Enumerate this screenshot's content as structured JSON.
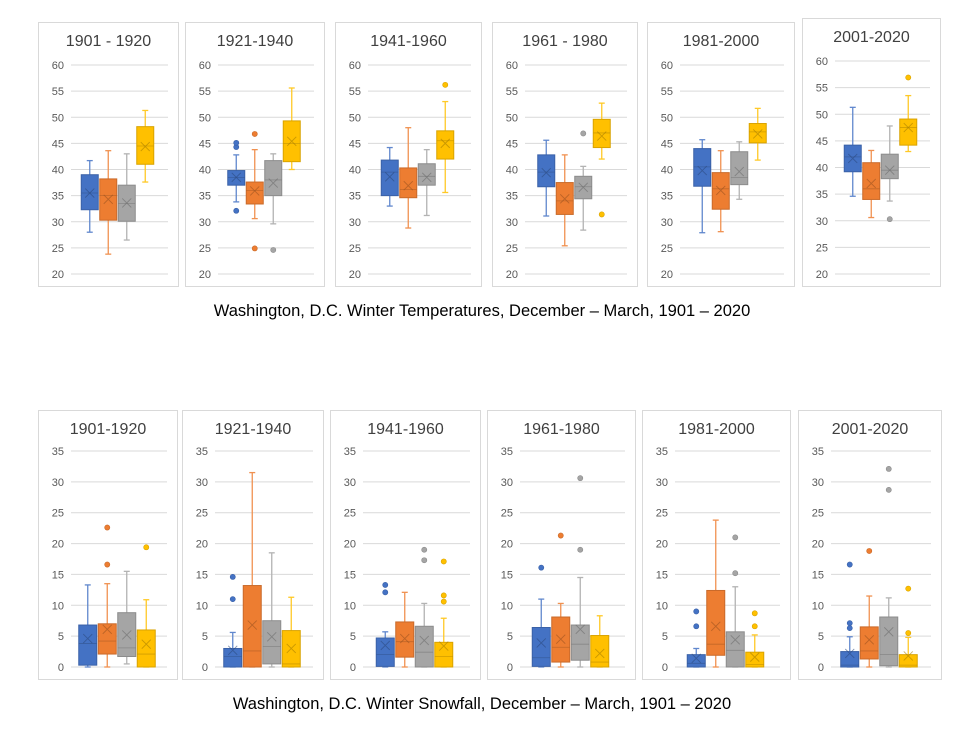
{
  "colors": {
    "blue": "#4472c4",
    "orange": "#ed7d31",
    "gray": "#a5a5a5",
    "yellow": "#ffc000",
    "grid": "#d9d9d9",
    "frame": "#d9d9d9"
  },
  "captions": {
    "temperature": "Washington, D.C. Winter Temperatures, December – March, 1901 – 2020",
    "snowfall": "Washington, D.C. Winter Snowfall, December – March, 1901 – 2020"
  },
  "chart_data": [
    {
      "type": "box",
      "group": "temperature",
      "title": "1901 - 1920",
      "ylim": [
        20,
        60
      ],
      "yticks": [
        20,
        25,
        30,
        35,
        40,
        45,
        50,
        55,
        60
      ],
      "grid": true,
      "series_colors": [
        "blue",
        "orange",
        "gray",
        "yellow"
      ],
      "boxes": [
        {
          "min": 28,
          "q1": 32.3,
          "median": 35.5,
          "q3": 39,
          "max": 41.7,
          "mean": 35.5,
          "outliers": []
        },
        {
          "min": 23.8,
          "q1": 30.3,
          "median": 35,
          "q3": 38.2,
          "max": 43.6,
          "mean": 34.3,
          "outliers": []
        },
        {
          "min": 26.5,
          "q1": 30.1,
          "median": 33.5,
          "q3": 37,
          "max": 43,
          "mean": 33.6,
          "outliers": []
        },
        {
          "min": 37.6,
          "q1": 41,
          "median": 44.5,
          "q3": 48.2,
          "max": 51.3,
          "mean": 44.4,
          "outliers": []
        }
      ]
    },
    {
      "type": "box",
      "group": "temperature",
      "title": "1921-1940",
      "ylim": [
        20,
        60
      ],
      "yticks": [
        20,
        25,
        30,
        35,
        40,
        45,
        50,
        55,
        60
      ],
      "grid": true,
      "series_colors": [
        "blue",
        "orange",
        "gray",
        "yellow"
      ],
      "boxes": [
        {
          "min": 33.8,
          "q1": 37,
          "median": 38.5,
          "q3": 39.8,
          "max": 42.8,
          "mean": 38.5,
          "outliers": [
            32.1,
            44.3,
            45.1
          ]
        },
        {
          "min": 30.6,
          "q1": 33.4,
          "median": 36,
          "q3": 37.6,
          "max": 43.8,
          "mean": 35.9,
          "outliers": [
            24.9,
            46.8
          ]
        },
        {
          "min": 29.6,
          "q1": 35,
          "median": 38,
          "q3": 41.7,
          "max": 43,
          "mean": 37.4,
          "outliers": [
            24.6
          ]
        },
        {
          "min": 40,
          "q1": 41.5,
          "median": 45,
          "q3": 49.3,
          "max": 55.6,
          "mean": 45.4,
          "outliers": []
        }
      ]
    },
    {
      "type": "box",
      "group": "temperature",
      "title": "1941-1960",
      "ylim": [
        20,
        60
      ],
      "yticks": [
        20,
        25,
        30,
        35,
        40,
        45,
        50,
        55,
        60
      ],
      "grid": true,
      "series_colors": [
        "blue",
        "orange",
        "gray",
        "yellow"
      ],
      "boxes": [
        {
          "min": 33,
          "q1": 35,
          "median": 39.5,
          "q3": 41.8,
          "max": 44.2,
          "mean": 38.6,
          "outliers": []
        },
        {
          "min": 28.8,
          "q1": 34.6,
          "median": 36.2,
          "q3": 40.3,
          "max": 48,
          "mean": 36.9,
          "outliers": []
        },
        {
          "min": 31.2,
          "q1": 37,
          "median": 38.7,
          "q3": 41.1,
          "max": 43.8,
          "mean": 38.5,
          "outliers": []
        },
        {
          "min": 35.6,
          "q1": 42,
          "median": 45.5,
          "q3": 47.4,
          "max": 53,
          "mean": 45,
          "outliers": [
            56.2
          ]
        }
      ]
    },
    {
      "type": "box",
      "group": "temperature",
      "title": "1961 - 1980",
      "ylim": [
        20,
        60
      ],
      "yticks": [
        20,
        25,
        30,
        35,
        40,
        45,
        50,
        55,
        60
      ],
      "grid": true,
      "series_colors": [
        "blue",
        "orange",
        "gray",
        "yellow"
      ],
      "boxes": [
        {
          "min": 31.1,
          "q1": 36.7,
          "median": 39.5,
          "q3": 42.8,
          "max": 45.6,
          "mean": 39.4,
          "outliers": []
        },
        {
          "min": 25.4,
          "q1": 31.4,
          "median": 34,
          "q3": 37.5,
          "max": 42.8,
          "mean": 34.4,
          "outliers": []
        },
        {
          "min": 28.4,
          "q1": 34.4,
          "median": 36.7,
          "q3": 38.7,
          "max": 40.6,
          "mean": 36.6,
          "outliers": [
            46.9
          ]
        },
        {
          "min": 42,
          "q1": 44.2,
          "median": 47,
          "q3": 49.6,
          "max": 52.7,
          "mean": 46.4,
          "outliers": [
            31.4
          ]
        }
      ]
    },
    {
      "type": "box",
      "group": "temperature",
      "title": "1981-2000",
      "ylim": [
        20,
        60
      ],
      "yticks": [
        20,
        25,
        30,
        35,
        40,
        45,
        50,
        55,
        60
      ],
      "grid": true,
      "series_colors": [
        "blue",
        "orange",
        "gray",
        "yellow"
      ],
      "boxes": [
        {
          "min": 27.9,
          "q1": 36.8,
          "median": 40.5,
          "q3": 44,
          "max": 45.7,
          "mean": 39.8,
          "outliers": []
        },
        {
          "min": 28.1,
          "q1": 32.4,
          "median": 36.3,
          "q3": 39.4,
          "max": 43.6,
          "mean": 36,
          "outliers": []
        },
        {
          "min": 34.3,
          "q1": 37.1,
          "median": 38.5,
          "q3": 43.4,
          "max": 45.3,
          "mean": 39.6,
          "outliers": []
        },
        {
          "min": 41.8,
          "q1": 45.1,
          "median": 47.2,
          "q3": 48.8,
          "max": 51.7,
          "mean": 46.8,
          "outliers": []
        }
      ]
    },
    {
      "type": "box",
      "group": "temperature",
      "title": "2001-2020",
      "ylim": [
        20,
        60
      ],
      "yticks": [
        20,
        25,
        30,
        35,
        40,
        45,
        50,
        55,
        60
      ],
      "grid": true,
      "series_colors": [
        "blue",
        "orange",
        "gray",
        "yellow"
      ],
      "boxes": [
        {
          "min": 34.6,
          "q1": 39.2,
          "median": 42,
          "q3": 44.2,
          "max": 51.3,
          "mean": 41.7,
          "outliers": []
        },
        {
          "min": 30.6,
          "q1": 34,
          "median": 36,
          "q3": 40.9,
          "max": 43.2,
          "mean": 37,
          "outliers": []
        },
        {
          "min": 33.7,
          "q1": 37.9,
          "median": 39.5,
          "q3": 42.5,
          "max": 47.8,
          "mean": 39.5,
          "outliers": [
            30.3
          ]
        },
        {
          "min": 43,
          "q1": 44.2,
          "median": 47.5,
          "q3": 49.1,
          "max": 53.5,
          "mean": 47.5,
          "outliers": [
            56.9
          ]
        }
      ]
    },
    {
      "type": "box",
      "group": "snowfall",
      "title": "1901-1920",
      "ylim": [
        0,
        35
      ],
      "yticks": [
        0,
        5,
        10,
        15,
        20,
        25,
        30,
        35
      ],
      "grid": true,
      "series_colors": [
        "blue",
        "orange",
        "gray",
        "yellow"
      ],
      "boxes": [
        {
          "min": 0,
          "q1": 0.3,
          "median": 3.8,
          "q3": 6.8,
          "max": 13.3,
          "mean": 4.6,
          "outliers": []
        },
        {
          "min": 0,
          "q1": 2.1,
          "median": 4.2,
          "q3": 7,
          "max": 13.5,
          "mean": 6.1,
          "outliers": [
            16.6,
            22.6
          ]
        },
        {
          "min": 0.5,
          "q1": 1.7,
          "median": 3.1,
          "q3": 8.8,
          "max": 15.5,
          "mean": 5.2,
          "outliers": []
        },
        {
          "min": 0,
          "q1": 0,
          "median": 2.1,
          "q3": 6,
          "max": 10.9,
          "mean": 3.7,
          "outliers": [
            19.4
          ]
        }
      ]
    },
    {
      "type": "box",
      "group": "snowfall",
      "title": "1921-1940",
      "ylim": [
        0,
        35
      ],
      "yticks": [
        0,
        5,
        10,
        15,
        20,
        25,
        30,
        35
      ],
      "grid": true,
      "series_colors": [
        "blue",
        "orange",
        "gray",
        "yellow"
      ],
      "boxes": [
        {
          "min": 0,
          "q1": 0,
          "median": 1.7,
          "q3": 3,
          "max": 5.6,
          "mean": 2.7,
          "outliers": [
            11,
            14.6
          ]
        },
        {
          "min": 0,
          "q1": 0,
          "median": 2.6,
          "q3": 13.2,
          "max": 31.5,
          "mean": 6.8,
          "outliers": []
        },
        {
          "min": 0,
          "q1": 0.5,
          "median": 3.3,
          "q3": 7.5,
          "max": 18.5,
          "mean": 4.9,
          "outliers": []
        },
        {
          "min": 0,
          "q1": 0,
          "median": 0.5,
          "q3": 5.9,
          "max": 11.3,
          "mean": 3,
          "outliers": []
        }
      ]
    },
    {
      "type": "box",
      "group": "snowfall",
      "title": "1941-1960",
      "ylim": [
        0,
        35
      ],
      "yticks": [
        0,
        5,
        10,
        15,
        20,
        25,
        30,
        35
      ],
      "grid": true,
      "series_colors": [
        "blue",
        "orange",
        "gray",
        "yellow"
      ],
      "boxes": [
        {
          "min": 0,
          "q1": 0.1,
          "median": 2,
          "q3": 4.7,
          "max": 5.7,
          "mean": 3.5,
          "outliers": [
            12.1,
            13.3
          ]
        },
        {
          "min": 0,
          "q1": 1.6,
          "median": 4.1,
          "q3": 7.3,
          "max": 12.1,
          "mean": 4.6,
          "outliers": []
        },
        {
          "min": 0,
          "q1": 0,
          "median": 2.4,
          "q3": 6.6,
          "max": 10.3,
          "mean": 4.3,
          "outliers": [
            17.3,
            19
          ]
        },
        {
          "min": 0,
          "q1": 0,
          "median": 1.7,
          "q3": 4,
          "max": 7.9,
          "mean": 3.4,
          "outliers": [
            10.6,
            11.6,
            17.1
          ]
        }
      ]
    },
    {
      "type": "box",
      "group": "snowfall",
      "title": "1961-1980",
      "ylim": [
        0,
        35
      ],
      "yticks": [
        0,
        5,
        10,
        15,
        20,
        25,
        30,
        35
      ],
      "grid": true,
      "series_colors": [
        "blue",
        "orange",
        "gray",
        "yellow"
      ],
      "boxes": [
        {
          "min": 0,
          "q1": 0.1,
          "median": 1.5,
          "q3": 6.4,
          "max": 11,
          "mean": 3.9,
          "outliers": [
            16.1
          ]
        },
        {
          "min": 0,
          "q1": 0.8,
          "median": 3.2,
          "q3": 8.1,
          "max": 10.3,
          "mean": 4.5,
          "outliers": [
            21.3
          ]
        },
        {
          "min": 0,
          "q1": 1.1,
          "median": 3.7,
          "q3": 6.8,
          "max": 14.5,
          "mean": 6.1,
          "outliers": [
            19,
            30.6
          ]
        },
        {
          "min": 0,
          "q1": 0,
          "median": 0.8,
          "q3": 5.1,
          "max": 8.3,
          "mean": 2.2,
          "outliers": []
        }
      ]
    },
    {
      "type": "box",
      "group": "snowfall",
      "title": "1981-2000",
      "ylim": [
        0,
        35
      ],
      "yticks": [
        0,
        5,
        10,
        15,
        20,
        25,
        30,
        35
      ],
      "grid": true,
      "series_colors": [
        "blue",
        "orange",
        "gray",
        "yellow"
      ],
      "boxes": [
        {
          "min": 0,
          "q1": 0,
          "median": 0.6,
          "q3": 2,
          "max": 3,
          "mean": 1.4,
          "outliers": [
            6.6,
            9
          ]
        },
        {
          "min": 0,
          "q1": 1.9,
          "median": 3.7,
          "q3": 12.4,
          "max": 23.8,
          "mean": 6.6,
          "outliers": []
        },
        {
          "min": 0,
          "q1": 0,
          "median": 2.7,
          "q3": 5.7,
          "max": 13,
          "mean": 4.4,
          "outliers": [
            15.2,
            21
          ]
        },
        {
          "min": 0,
          "q1": 0,
          "median": 0.4,
          "q3": 2.4,
          "max": 5.2,
          "mean": 1.6,
          "outliers": [
            6.6,
            8.7
          ]
        }
      ]
    },
    {
      "type": "box",
      "group": "snowfall",
      "title": "2001-2020",
      "ylim": [
        0,
        35
      ],
      "yticks": [
        0,
        5,
        10,
        15,
        20,
        25,
        30,
        35
      ],
      "grid": true,
      "series_colors": [
        "blue",
        "orange",
        "gray",
        "yellow"
      ],
      "boxes": [
        {
          "min": 0,
          "q1": 0,
          "median": 0.3,
          "q3": 2.5,
          "max": 4.9,
          "mean": 2.2,
          "outliers": [
            6.3,
            7.1,
            16.6
          ]
        },
        {
          "min": 0,
          "q1": 1.3,
          "median": 2.6,
          "q3": 6.5,
          "max": 11.5,
          "mean": 4.4,
          "outliers": [
            18.8
          ]
        },
        {
          "min": 0,
          "q1": 0.2,
          "median": 2,
          "q3": 8.1,
          "max": 11.2,
          "mean": 5.7,
          "outliers": [
            28.7,
            32.1
          ]
        },
        {
          "min": 0,
          "q1": 0,
          "median": 0.3,
          "q3": 2,
          "max": 4.8,
          "mean": 1.8,
          "outliers": [
            5.5,
            12.7
          ]
        }
      ]
    }
  ]
}
